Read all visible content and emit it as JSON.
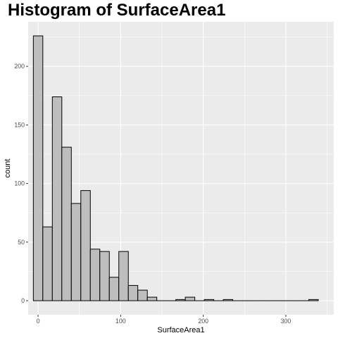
{
  "chart_data": {
    "type": "bar",
    "title": "Histogram of SurfaceArea1",
    "xlabel": "SurfaceArea1",
    "ylabel": "count",
    "xlim": [
      -12,
      358
    ],
    "ylim": [
      -12,
      238
    ],
    "x_ticks": [
      0,
      100,
      200,
      300
    ],
    "x_tick_labels": [
      "0",
      "100",
      "200",
      "300"
    ],
    "y_ticks": [
      0,
      50,
      100,
      150,
      200
    ],
    "y_tick_labels": [
      "0",
      "50",
      "100",
      "150",
      "200"
    ],
    "bin_width": 11.5,
    "bin_starts": [
      -5.75,
      5.75,
      17.25,
      28.75,
      40.25,
      51.75,
      63.25,
      74.75,
      86.25,
      97.75,
      109.25,
      120.75,
      132.25,
      143.75,
      155.25,
      166.75,
      178.25,
      189.75,
      201.25,
      212.75,
      224.25,
      235.75,
      247.25,
      258.75,
      270.25,
      281.75,
      293.25,
      304.75,
      316.25,
      327.75
    ],
    "values": [
      226,
      63,
      174,
      131,
      83,
      94,
      44,
      42,
      20,
      42,
      13,
      9,
      3,
      0,
      0,
      1,
      3,
      0,
      1,
      0,
      1,
      0,
      0,
      0,
      0,
      0,
      0,
      0,
      0,
      1
    ],
    "grid": true,
    "legend": "none",
    "colors": {
      "panel": "#ebebeb",
      "grid_major": "#ffffff",
      "bar_fill": "#bebebe",
      "bar_stroke": "#000000",
      "tick": "#333333"
    }
  }
}
